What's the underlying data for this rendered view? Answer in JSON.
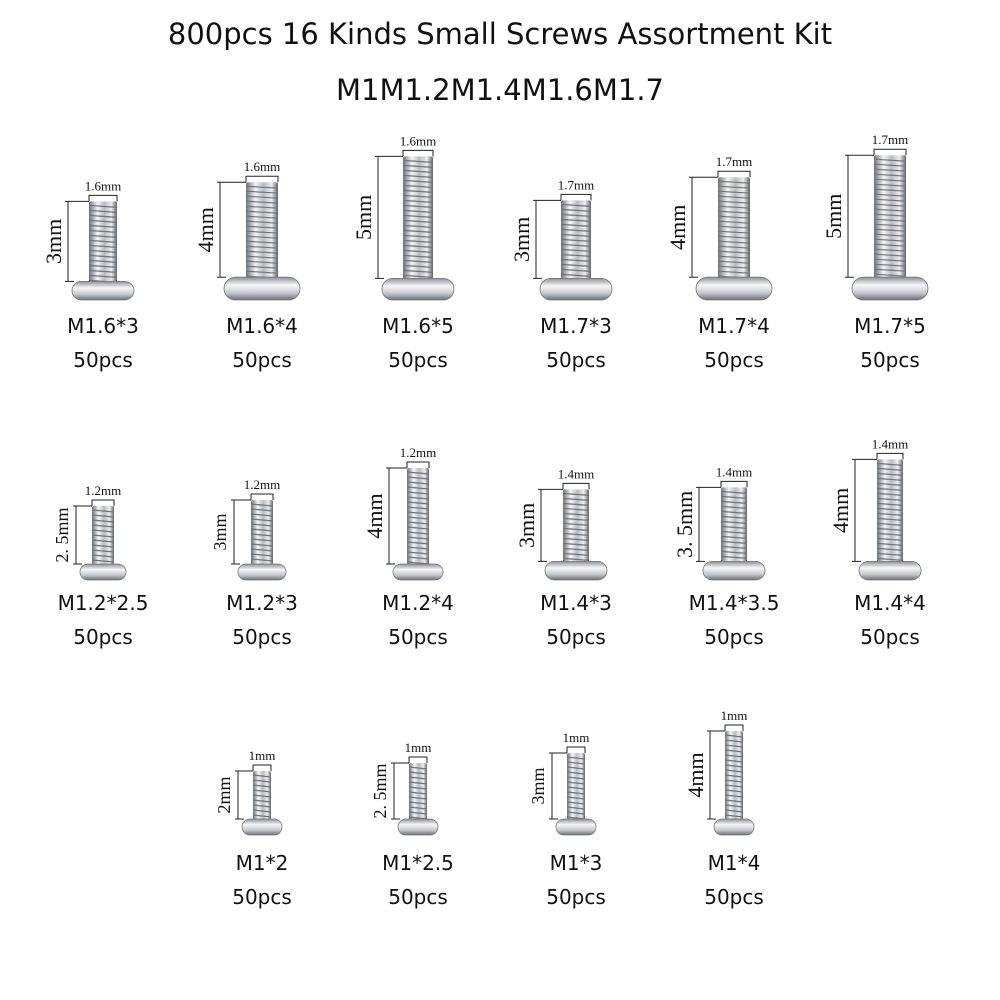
{
  "header": {
    "title": "800pcs 16 Kinds Small Screws Assortment Kit",
    "subtitle": "M1M1.2M1.4M1.6M1.7"
  },
  "items": [
    {
      "name": "M1.6*3",
      "quantity": "50pcs",
      "diameter": "1.6mm",
      "length": "3mm"
    },
    {
      "name": "M1.6*4",
      "quantity": "50pcs",
      "diameter": "1.6mm",
      "length": "4mm"
    },
    {
      "name": "M1.6*5",
      "quantity": "50pcs",
      "diameter": "1.6mm",
      "length": "5mm"
    },
    {
      "name": "M1.7*3",
      "quantity": "50pcs",
      "diameter": "1.7mm",
      "length": "3mm"
    },
    {
      "name": "M1.7*4",
      "quantity": "50pcs",
      "diameter": "1.7mm",
      "length": "4mm"
    },
    {
      "name": "M1.7*5",
      "quantity": "50pcs",
      "diameter": "1.7mm",
      "length": "5mm"
    },
    {
      "name": "M1.2*2.5",
      "quantity": "50pcs",
      "diameter": "1.2mm",
      "length": "2. 5mm"
    },
    {
      "name": "M1.2*3",
      "quantity": "50pcs",
      "diameter": "1.2mm",
      "length": "3mm"
    },
    {
      "name": "M1.2*4",
      "quantity": "50pcs",
      "diameter": "1.2mm",
      "length": "4mm"
    },
    {
      "name": "M1.4*3",
      "quantity": "50pcs",
      "diameter": "1.4mm",
      "length": "3mm"
    },
    {
      "name": "M1.4*3.5",
      "quantity": "50pcs",
      "diameter": "1.4mm",
      "length": "3. 5mm"
    },
    {
      "name": "M1.4*4",
      "quantity": "50pcs",
      "diameter": "1.4mm",
      "length": "4mm"
    },
    {
      "name": "M1*2",
      "quantity": "50pcs",
      "diameter": "1mm",
      "length": "2mm"
    },
    {
      "name": "M1*2.5",
      "quantity": "50pcs",
      "diameter": "1mm",
      "length": "2. 5mm"
    },
    {
      "name": "M1*3",
      "quantity": "50pcs",
      "diameter": "1mm",
      "length": "3mm"
    },
    {
      "name": "M1*4",
      "quantity": "50pcs",
      "diameter": "1mm",
      "length": "4mm"
    }
  ]
}
